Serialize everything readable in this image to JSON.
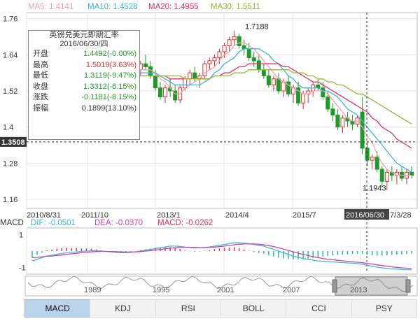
{
  "ma_legend": [
    {
      "label": "MA5: 1.4141",
      "color": "#f4a0b0"
    },
    {
      "label": "MA10: 1.4528",
      "color": "#3ab8d8"
    },
    {
      "label": "MA20: 1.4955",
      "color": "#e0306a"
    },
    {
      "label": "MA30: 1.5511",
      "color": "#96b832"
    }
  ],
  "macd_legend": [
    {
      "label": "MACD",
      "color": "#333333"
    },
    {
      "label": "DIF: -0.0501",
      "color": "#3ab8d8"
    },
    {
      "label": "DEA: -0.0370",
      "color": "#d040b0"
    },
    {
      "label": "MACD: -0.0262",
      "color": "#e03050"
    }
  ],
  "info": {
    "title": "英镑兑美元即期汇率",
    "date": "2016/06/30/四",
    "rows": [
      {
        "k": "开盘",
        "v": "1.4492(-0.00%)",
        "color": "#2a9a2a"
      },
      {
        "k": "最高",
        "v": "1.5019(3.63%)",
        "color": "#e03030"
      },
      {
        "k": "最低",
        "v": "1.3119(-9.47%)",
        "color": "#2a9a2a"
      },
      {
        "k": "收盘",
        "v": "1.3312(-8.15%)",
        "color": "#2a9a2a"
      },
      {
        "k": "涨跌",
        "v": "-0.1181(-8.15%)",
        "color": "#2a9a2a"
      },
      {
        "k": "振幅",
        "v": "0.1899(13.10%)",
        "color": "#333333"
      }
    ]
  },
  "tabs": [
    {
      "label": "MACD",
      "active": true
    },
    {
      "label": "KDJ",
      "active": false
    },
    {
      "label": "RSI",
      "active": false
    },
    {
      "label": "BOLL",
      "active": false
    },
    {
      "label": "CCI",
      "active": false
    },
    {
      "label": "PSY",
      "active": false
    }
  ],
  "cursor": {
    "price_label": "1.3508",
    "date_label": "2016/06/30"
  },
  "navigator": {
    "year_labels": [
      "1989",
      "1995",
      "2001",
      "2007",
      "2013"
    ]
  },
  "chart_data": [
    {
      "type": "candlestick",
      "title": "英镑兑美元即期汇率",
      "ylim": [
        1.13,
        1.78
      ],
      "y_ticks": [
        1.16,
        1.28,
        1.4,
        1.52,
        1.64,
        1.76
      ],
      "x_labels": [
        "2010/8/31",
        "2011/10",
        "2013/1",
        "2014/4",
        "2015/7",
        "2016/06/30",
        "7/3/28"
      ],
      "annotations": [
        {
          "text": "1.7188",
          "value": 1.7188
        },
        {
          "text": "1.1943",
          "value": 1.1943
        }
      ],
      "candles": [
        [
          1.55,
          1.61,
          1.52,
          1.57
        ],
        [
          1.57,
          1.6,
          1.54,
          1.59
        ],
        [
          1.59,
          1.64,
          1.57,
          1.62
        ],
        [
          1.62,
          1.65,
          1.59,
          1.6
        ],
        [
          1.6,
          1.62,
          1.55,
          1.56
        ],
        [
          1.56,
          1.6,
          1.53,
          1.58
        ],
        [
          1.58,
          1.62,
          1.56,
          1.61
        ],
        [
          1.61,
          1.63,
          1.57,
          1.58
        ],
        [
          1.58,
          1.6,
          1.54,
          1.55
        ],
        [
          1.55,
          1.59,
          1.53,
          1.57
        ],
        [
          1.57,
          1.61,
          1.55,
          1.6
        ],
        [
          1.6,
          1.62,
          1.56,
          1.57
        ],
        [
          1.57,
          1.59,
          1.53,
          1.54
        ],
        [
          1.54,
          1.58,
          1.52,
          1.56
        ],
        [
          1.56,
          1.6,
          1.54,
          1.59
        ],
        [
          1.59,
          1.61,
          1.55,
          1.56
        ],
        [
          1.56,
          1.58,
          1.53,
          1.55
        ],
        [
          1.55,
          1.59,
          1.54,
          1.58
        ],
        [
          1.58,
          1.61,
          1.56,
          1.6
        ],
        [
          1.6,
          1.63,
          1.58,
          1.59
        ],
        [
          1.59,
          1.61,
          1.56,
          1.57
        ],
        [
          1.57,
          1.6,
          1.55,
          1.59
        ],
        [
          1.59,
          1.62,
          1.57,
          1.61
        ],
        [
          1.61,
          1.64,
          1.59,
          1.6
        ],
        [
          1.6,
          1.62,
          1.56,
          1.57
        ],
        [
          1.57,
          1.59,
          1.52,
          1.53
        ],
        [
          1.53,
          1.55,
          1.49,
          1.5
        ],
        [
          1.5,
          1.54,
          1.48,
          1.53
        ],
        [
          1.53,
          1.56,
          1.5,
          1.52
        ],
        [
          1.52,
          1.54,
          1.48,
          1.49
        ],
        [
          1.49,
          1.54,
          1.48,
          1.53
        ],
        [
          1.53,
          1.57,
          1.52,
          1.56
        ],
        [
          1.56,
          1.59,
          1.54,
          1.58
        ],
        [
          1.58,
          1.6,
          1.55,
          1.56
        ],
        [
          1.56,
          1.58,
          1.53,
          1.57
        ],
        [
          1.57,
          1.62,
          1.56,
          1.61
        ],
        [
          1.61,
          1.63,
          1.59,
          1.62
        ],
        [
          1.62,
          1.64,
          1.6,
          1.63
        ],
        [
          1.63,
          1.66,
          1.61,
          1.65
        ],
        [
          1.65,
          1.68,
          1.63,
          1.67
        ],
        [
          1.67,
          1.7,
          1.65,
          1.69
        ],
        [
          1.69,
          1.72,
          1.67,
          1.7
        ],
        [
          1.7,
          1.71,
          1.66,
          1.67
        ],
        [
          1.67,
          1.69,
          1.64,
          1.66
        ],
        [
          1.66,
          1.68,
          1.62,
          1.63
        ],
        [
          1.63,
          1.65,
          1.6,
          1.62
        ],
        [
          1.62,
          1.64,
          1.58,
          1.59
        ],
        [
          1.59,
          1.61,
          1.56,
          1.57
        ],
        [
          1.57,
          1.59,
          1.53,
          1.54
        ],
        [
          1.54,
          1.57,
          1.52,
          1.56
        ],
        [
          1.56,
          1.58,
          1.51,
          1.52
        ],
        [
          1.52,
          1.56,
          1.5,
          1.55
        ],
        [
          1.55,
          1.57,
          1.5,
          1.51
        ],
        [
          1.51,
          1.54,
          1.48,
          1.53
        ],
        [
          1.53,
          1.55,
          1.47,
          1.48
        ],
        [
          1.48,
          1.52,
          1.46,
          1.51
        ],
        [
          1.51,
          1.53,
          1.48,
          1.52
        ],
        [
          1.52,
          1.55,
          1.5,
          1.54
        ],
        [
          1.54,
          1.56,
          1.52,
          1.53
        ],
        [
          1.53,
          1.55,
          1.49,
          1.5
        ],
        [
          1.5,
          1.52,
          1.45,
          1.46
        ],
        [
          1.46,
          1.48,
          1.42,
          1.44
        ],
        [
          1.44,
          1.46,
          1.39,
          1.4
        ],
        [
          1.4,
          1.44,
          1.38,
          1.43
        ],
        [
          1.43,
          1.45,
          1.4,
          1.42
        ],
        [
          1.42,
          1.44,
          1.39,
          1.41
        ],
        [
          1.41,
          1.44,
          1.4,
          1.43
        ],
        [
          1.45,
          1.5,
          1.31,
          1.33
        ],
        [
          1.33,
          1.35,
          1.27,
          1.29
        ],
        [
          1.29,
          1.31,
          1.26,
          1.3
        ],
        [
          1.3,
          1.32,
          1.25,
          1.26
        ],
        [
          1.26,
          1.27,
          1.2,
          1.22
        ],
        [
          1.22,
          1.26,
          1.19,
          1.25
        ],
        [
          1.25,
          1.27,
          1.22,
          1.24
        ],
        [
          1.24,
          1.26,
          1.21,
          1.25
        ],
        [
          1.25,
          1.27,
          1.22,
          1.23
        ],
        [
          1.23,
          1.26,
          1.21,
          1.25
        ],
        [
          1.25,
          1.27,
          1.23,
          1.24
        ]
      ],
      "series": [
        {
          "name": "MA5",
          "color": "#f4a0b0",
          "values": [
            1.56,
            1.57,
            1.58,
            1.59,
            1.59,
            1.59,
            1.59,
            1.59,
            1.58,
            1.58,
            1.58,
            1.58,
            1.57,
            1.57,
            1.57,
            1.57,
            1.56,
            1.56,
            1.57,
            1.58,
            1.58,
            1.58,
            1.59,
            1.59,
            1.59,
            1.58,
            1.56,
            1.55,
            1.53,
            1.51,
            1.51,
            1.53,
            1.54,
            1.55,
            1.56,
            1.58,
            1.59,
            1.6,
            1.62,
            1.64,
            1.65,
            1.67,
            1.68,
            1.68,
            1.67,
            1.66,
            1.64,
            1.62,
            1.6,
            1.58,
            1.56,
            1.55,
            1.54,
            1.53,
            1.52,
            1.51,
            1.51,
            1.52,
            1.52,
            1.52,
            1.51,
            1.49,
            1.47,
            1.45,
            1.43,
            1.42,
            1.42,
            1.4,
            1.37,
            1.35,
            1.31,
            1.28,
            1.26,
            1.25,
            1.24,
            1.24,
            1.24,
            1.24
          ]
        },
        {
          "name": "MA10",
          "color": "#3ab8d8",
          "values": [
            1.55,
            1.56,
            1.56,
            1.57,
            1.58,
            1.58,
            1.58,
            1.58,
            1.58,
            1.58,
            1.58,
            1.58,
            1.58,
            1.57,
            1.57,
            1.57,
            1.57,
            1.57,
            1.57,
            1.57,
            1.57,
            1.57,
            1.58,
            1.58,
            1.58,
            1.58,
            1.57,
            1.56,
            1.55,
            1.54,
            1.54,
            1.54,
            1.54,
            1.54,
            1.54,
            1.55,
            1.56,
            1.58,
            1.59,
            1.61,
            1.62,
            1.63,
            1.65,
            1.66,
            1.66,
            1.66,
            1.66,
            1.65,
            1.64,
            1.62,
            1.61,
            1.59,
            1.57,
            1.56,
            1.54,
            1.53,
            1.53,
            1.53,
            1.53,
            1.52,
            1.52,
            1.51,
            1.5,
            1.48,
            1.46,
            1.45,
            1.44,
            1.42,
            1.4,
            1.38,
            1.36,
            1.34,
            1.32,
            1.3,
            1.28,
            1.27,
            1.26,
            1.25
          ]
        },
        {
          "name": "MA20",
          "color": "#e0306a",
          "values": [
            1.56,
            1.56,
            1.57,
            1.57,
            1.57,
            1.57,
            1.57,
            1.57,
            1.57,
            1.57,
            1.57,
            1.57,
            1.57,
            1.57,
            1.57,
            1.57,
            1.57,
            1.57,
            1.57,
            1.57,
            1.57,
            1.57,
            1.57,
            1.57,
            1.57,
            1.57,
            1.57,
            1.57,
            1.56,
            1.56,
            1.56,
            1.56,
            1.56,
            1.56,
            1.56,
            1.56,
            1.56,
            1.57,
            1.57,
            1.58,
            1.58,
            1.59,
            1.6,
            1.6,
            1.61,
            1.61,
            1.61,
            1.61,
            1.61,
            1.61,
            1.61,
            1.6,
            1.6,
            1.59,
            1.58,
            1.57,
            1.56,
            1.55,
            1.55,
            1.54,
            1.53,
            1.52,
            1.51,
            1.5,
            1.49,
            1.48,
            1.47,
            1.46,
            1.45,
            1.43,
            1.42,
            1.4,
            1.39,
            1.38,
            1.36,
            1.35,
            1.34,
            1.33
          ]
        },
        {
          "name": "MA30",
          "color": "#96b832",
          "values": [
            1.57,
            1.57,
            1.57,
            1.57,
            1.57,
            1.57,
            1.57,
            1.57,
            1.57,
            1.57,
            1.57,
            1.57,
            1.57,
            1.57,
            1.57,
            1.57,
            1.57,
            1.57,
            1.57,
            1.57,
            1.57,
            1.57,
            1.57,
            1.57,
            1.57,
            1.57,
            1.57,
            1.57,
            1.57,
            1.57,
            1.57,
            1.56,
            1.56,
            1.56,
            1.56,
            1.56,
            1.56,
            1.57,
            1.57,
            1.57,
            1.57,
            1.58,
            1.58,
            1.58,
            1.59,
            1.59,
            1.59,
            1.59,
            1.59,
            1.59,
            1.59,
            1.59,
            1.59,
            1.58,
            1.58,
            1.58,
            1.57,
            1.57,
            1.56,
            1.56,
            1.55,
            1.55,
            1.54,
            1.54,
            1.53,
            1.52,
            1.51,
            1.51,
            1.5,
            1.49,
            1.48,
            1.47,
            1.46,
            1.45,
            1.44,
            1.43,
            1.42,
            1.41
          ]
        }
      ]
    },
    {
      "type": "line",
      "title": "MACD",
      "ylim": [
        -1.4,
        1.4
      ],
      "y_ticks": [
        1,
        -1
      ],
      "series": [
        {
          "name": "DIF",
          "color": "#3ab8d8",
          "values": [
            -0.6,
            -0.5,
            -0.4,
            -0.3,
            -0.25,
            -0.2,
            -0.15,
            -0.1,
            -0.08,
            -0.05,
            -0.02,
            0.0,
            0.02,
            0.02,
            0.0,
            -0.02,
            -0.05,
            -0.08,
            -0.1,
            -0.1,
            -0.08,
            -0.05,
            0.0,
            0.05,
            0.1,
            0.15,
            0.2,
            0.25,
            0.3,
            0.3,
            0.28,
            0.25,
            0.22,
            0.2,
            0.2,
            0.22,
            0.25,
            0.3,
            0.35,
            0.4,
            0.45,
            0.5,
            0.5,
            0.48,
            0.45,
            0.4,
            0.35,
            0.3,
            0.2,
            0.1,
            0.0,
            -0.1,
            -0.2,
            -0.3,
            -0.38,
            -0.45,
            -0.5,
            -0.55,
            -0.6,
            -0.62,
            -0.64,
            -0.66,
            -0.68,
            -0.7,
            -0.72,
            -0.74,
            -0.76,
            -0.8,
            -0.86,
            -0.92,
            -0.98,
            -1.02,
            -1.05,
            -1.08,
            -1.1,
            -1.12,
            -1.13,
            -1.14
          ]
        },
        {
          "name": "DEA",
          "color": "#d040b0",
          "values": [
            -0.4,
            -0.38,
            -0.35,
            -0.32,
            -0.3,
            -0.27,
            -0.24,
            -0.2,
            -0.17,
            -0.14,
            -0.1,
            -0.08,
            -0.05,
            -0.03,
            -0.02,
            -0.02,
            -0.03,
            -0.04,
            -0.05,
            -0.06,
            -0.06,
            -0.05,
            -0.03,
            0.0,
            0.03,
            0.07,
            0.1,
            0.14,
            0.18,
            0.2,
            0.22,
            0.23,
            0.23,
            0.22,
            0.21,
            0.21,
            0.22,
            0.24,
            0.27,
            0.3,
            0.34,
            0.38,
            0.41,
            0.43,
            0.44,
            0.43,
            0.41,
            0.38,
            0.33,
            0.27,
            0.2,
            0.12,
            0.04,
            -0.05,
            -0.13,
            -0.2,
            -0.27,
            -0.34,
            -0.4,
            -0.45,
            -0.49,
            -0.53,
            -0.56,
            -0.59,
            -0.62,
            -0.65,
            -0.68,
            -0.71,
            -0.75,
            -0.79,
            -0.84,
            -0.88,
            -0.92,
            -0.96,
            -0.99,
            -1.02,
            -1.04,
            -1.06
          ]
        }
      ]
    }
  ]
}
